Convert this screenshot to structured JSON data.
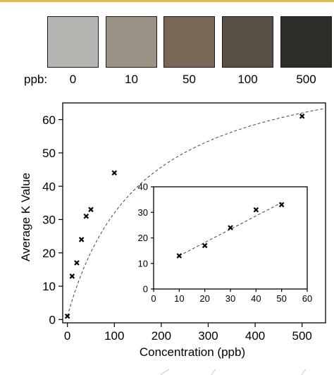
{
  "swatches": {
    "axis_label": "ppb:",
    "items": [
      {
        "label": "0",
        "color": "#b7b5b1"
      },
      {
        "label": "10",
        "color": "#9d9286"
      },
      {
        "label": "50",
        "color": "#7a6655"
      },
      {
        "label": "100",
        "color": "#5a4f44"
      },
      {
        "label": "500",
        "color": "#2b2d29"
      }
    ]
  },
  "chart_data": [
    {
      "type": "scatter",
      "title": "",
      "xlabel": "Concentration (ppb)",
      "ylabel": "Average K Value",
      "xlim": [
        -10,
        550
      ],
      "ylim": [
        -1,
        65
      ],
      "xticks": [
        0,
        100,
        200,
        300,
        400,
        500
      ],
      "yticks": [
        0,
        10,
        20,
        30,
        40,
        50,
        60
      ],
      "grid": false,
      "marker": "x",
      "series": [
        {
          "points": [
            [
              0,
              1
            ],
            [
              10,
              13
            ],
            [
              20,
              17
            ],
            [
              30,
              24
            ],
            [
              40,
              31
            ],
            [
              50,
              33
            ],
            [
              100,
              44
            ],
            [
              500,
              61
            ]
          ]
        }
      ],
      "fit": {
        "style": "dashed",
        "shape": "saturating curve through points"
      }
    },
    {
      "type": "scatter",
      "title": "",
      "inset": true,
      "xlabel": "",
      "ylabel": "",
      "xlim": [
        0,
        60
      ],
      "ylim": [
        0,
        40
      ],
      "xticks": [
        0,
        10,
        20,
        30,
        40,
        50,
        60
      ],
      "yticks": [
        0,
        10,
        20,
        30,
        40
      ],
      "grid": false,
      "marker": "x",
      "series": [
        {
          "points": [
            [
              10,
              13
            ],
            [
              20,
              17
            ],
            [
              30,
              24
            ],
            [
              40,
              31
            ],
            [
              50,
              33
            ]
          ]
        }
      ],
      "fit": {
        "style": "dashed",
        "shape": "linear",
        "x_range": [
          10,
          50
        ]
      }
    }
  ]
}
